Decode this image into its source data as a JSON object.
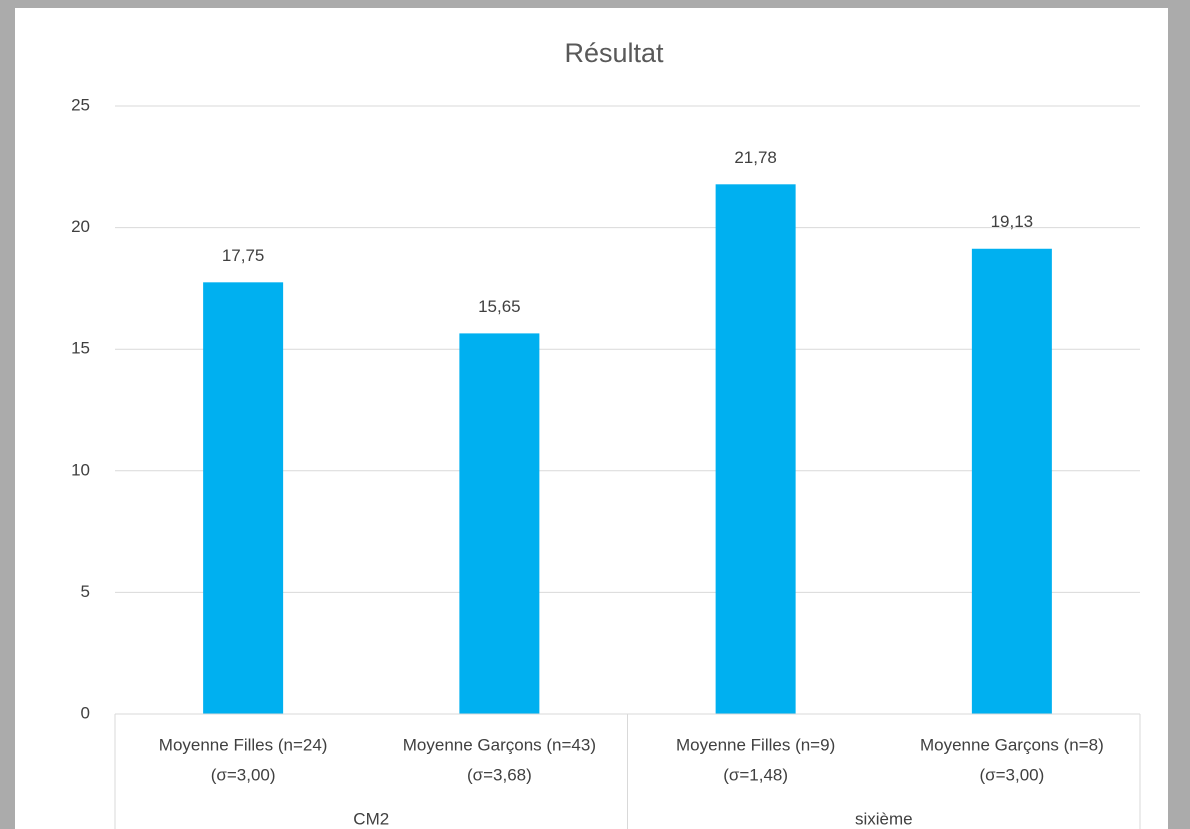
{
  "chart_data": {
    "type": "bar",
    "title": "Résultat",
    "groups": [
      {
        "name": "CM2",
        "categories": [
          [
            "Moyenne Filles (n=24)",
            "(σ=3,00)"
          ],
          [
            "Moyenne Garçons (n=43)",
            "(σ=3,68)"
          ]
        ]
      },
      {
        "name": "sixième",
        "categories": [
          [
            "Moyenne Filles (n=9)",
            "(σ=1,48)"
          ],
          [
            "Moyenne Garçons (n=8)",
            "(σ=3,00)"
          ]
        ]
      }
    ],
    "values": [
      17.75,
      15.65,
      21.78,
      19.13
    ],
    "value_labels": [
      "17,75",
      "15,65",
      "21,78",
      "19,13"
    ],
    "color": "#00b0f0",
    "ylim": [
      0,
      25
    ],
    "yticks": [
      0,
      5,
      10,
      15,
      20,
      25
    ],
    "grid": true
  }
}
